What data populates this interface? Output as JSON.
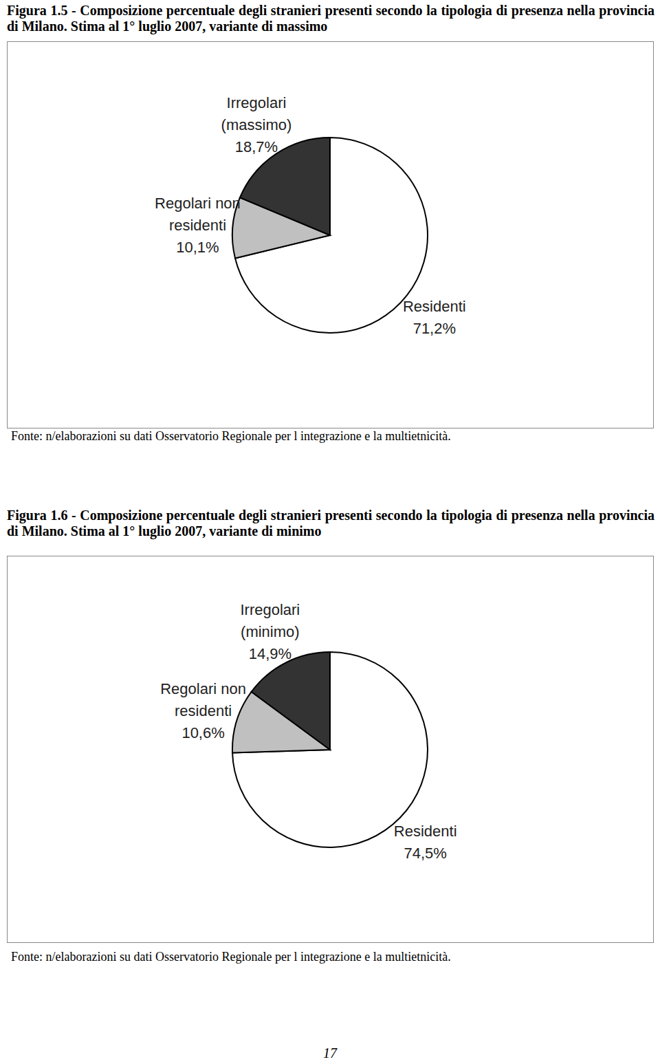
{
  "page_number": 17,
  "chart_data": [
    {
      "type": "pie",
      "title": "Figura 1.5 - Composizione percentuale degli stranieri presenti secondo la tipologia di presenza nella provincia di Milano. Stima al 1° luglio 2007, variante di massimo",
      "caption": "Fonte: n/elaborazioni su dati Osservatorio Regionale per l integrazione e la multietnicità.",
      "categories": [
        "Residenti",
        "Regolari non\nresidenti",
        "Irregolari\n(massimo)"
      ],
      "values": [
        71.2,
        10.1,
        18.7
      ],
      "value_labels": [
        "71,2%",
        "10,1%",
        "18,7%"
      ],
      "colors": [
        "#ffffff",
        "#c0c0c0",
        "#333333"
      ],
      "data_labels": true
    },
    {
      "type": "pie",
      "title": "Figura 1.6 - Composizione percentuale degli stranieri presenti secondo la tipologia di presenza nella provincia di Milano. Stima al 1° luglio 2007, variante di minimo",
      "caption": "Fonte: n/elaborazioni su dati Osservatorio Regionale per l integrazione e la multietnicità.",
      "categories": [
        "Residenti",
        "Regolari non\nresidenti",
        "Irregolari\n(minimo)"
      ],
      "values": [
        74.5,
        10.6,
        14.9
      ],
      "value_labels": [
        "74,5%",
        "10,6%",
        "14,9%"
      ],
      "colors": [
        "#ffffff",
        "#c0c0c0",
        "#333333"
      ],
      "data_labels": true
    }
  ]
}
